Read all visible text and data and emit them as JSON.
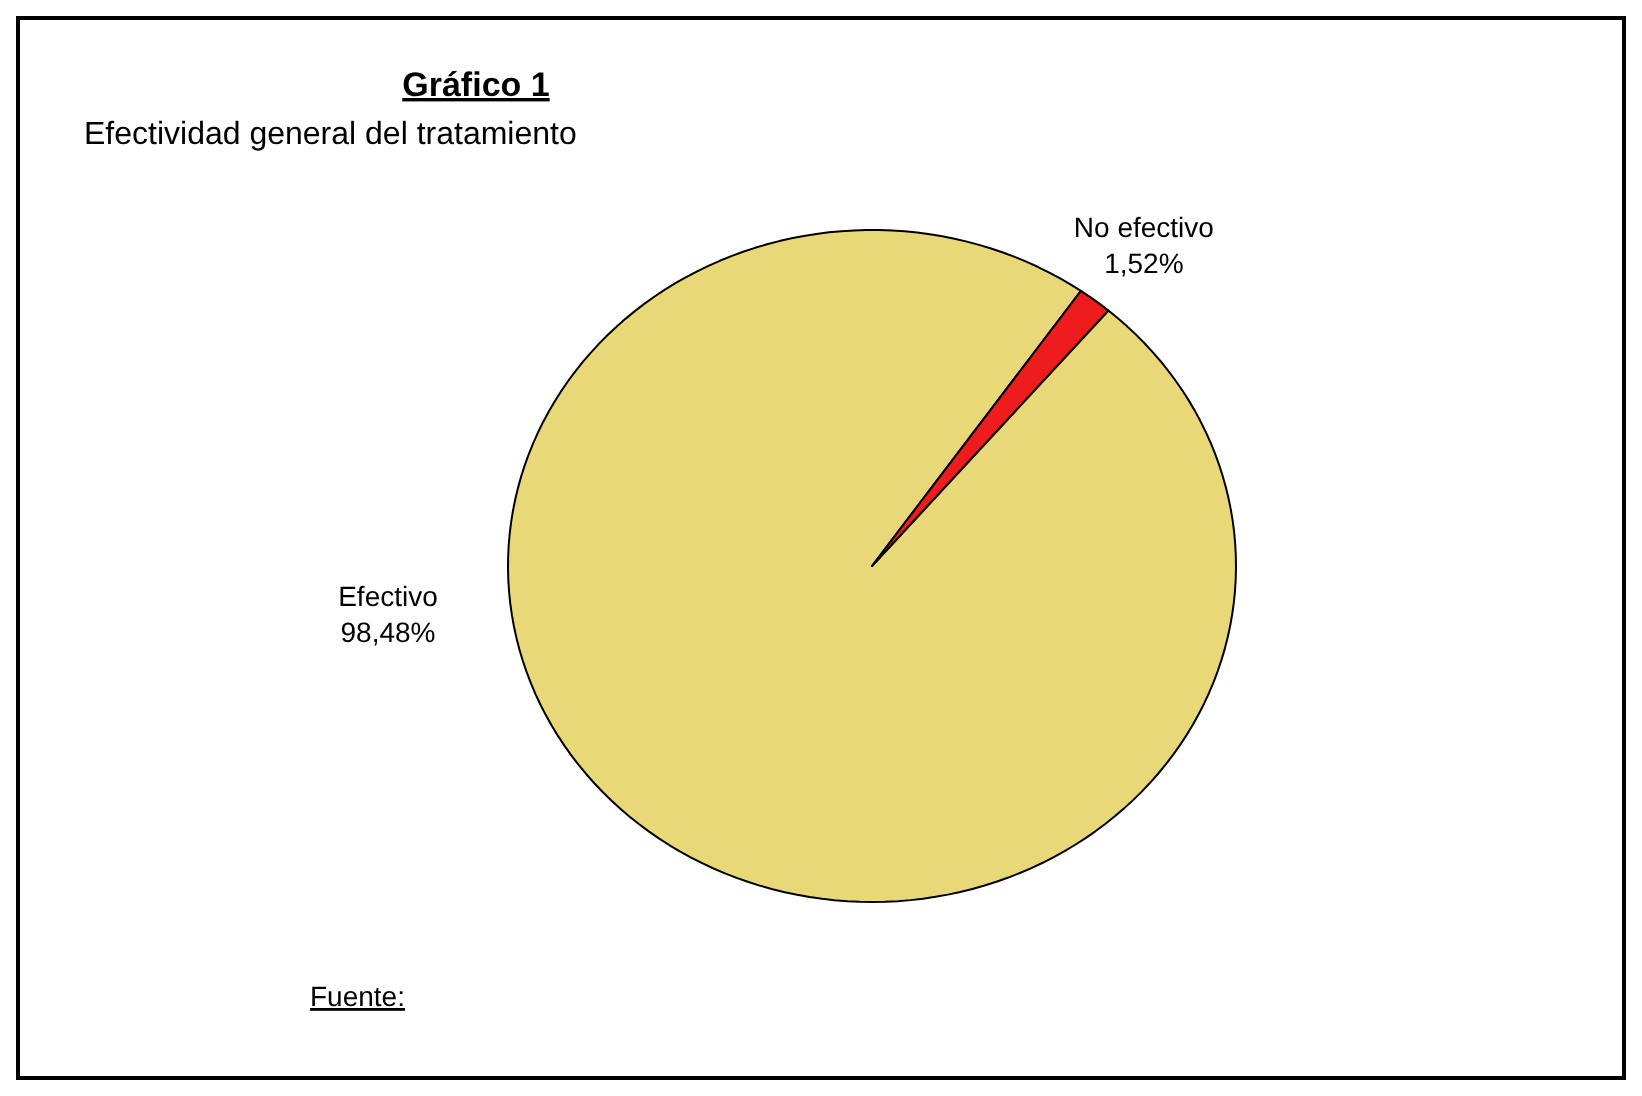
{
  "chart_data": {
    "type": "pie",
    "title": "Gráfico 1",
    "subtitle": "Efectividad general del tratamiento",
    "categories": [
      "Efectivo",
      "No efectivo"
    ],
    "values": [
      98.48,
      1.52
    ],
    "colors": [
      "#e8d878",
      "#ee1c1c"
    ],
    "value_labels": [
      "98,48%",
      "1,52%"
    ],
    "annotations": [
      "Fuente:"
    ]
  }
}
